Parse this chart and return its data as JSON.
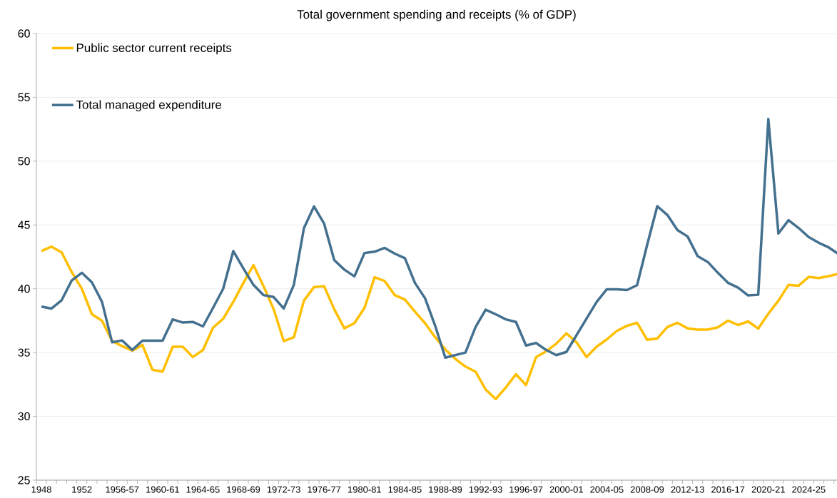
{
  "chart_data": {
    "type": "line",
    "title": "Total government spending and receipts (% of GDP)",
    "categories": [
      "1948",
      null,
      null,
      null,
      "1952",
      null,
      null,
      null,
      "1956-57",
      null,
      null,
      null,
      "1960-61",
      null,
      null,
      null,
      "1964-65",
      null,
      null,
      null,
      "1968-69",
      null,
      null,
      null,
      "1972-73",
      null,
      null,
      null,
      "1976-77",
      null,
      null,
      null,
      "1980-81",
      null,
      null,
      null,
      "1984-85",
      null,
      null,
      null,
      "1988-89",
      null,
      null,
      null,
      "1992-93",
      null,
      null,
      null,
      "1996-97",
      null,
      null,
      null,
      "2000-01",
      null,
      null,
      null,
      "2004-05",
      null,
      null,
      null,
      "2008-09",
      null,
      null,
      null,
      "2012-13",
      null,
      null,
      null,
      "2016-17",
      null,
      null,
      null,
      "2020-21",
      null,
      null,
      null,
      "2024-25",
      null,
      null,
      null
    ],
    "series": [
      {
        "name": "Public sector current receipts",
        "color": "#ffbf00",
        "values": [
          42.95,
          43.3,
          42.85,
          41.3,
          40.0,
          38.0,
          37.5,
          35.9,
          35.5,
          35.15,
          35.6,
          33.65,
          33.5,
          35.45,
          35.45,
          34.65,
          35.2,
          36.95,
          37.65,
          38.97,
          40.45,
          41.85,
          40.2,
          38.4,
          35.9,
          36.2,
          39.07,
          40.13,
          40.2,
          38.4,
          36.9,
          37.3,
          38.5,
          40.9,
          40.6,
          39.5,
          39.15,
          38.2,
          37.3,
          36.2,
          35.25,
          34.5,
          33.9,
          33.5,
          32.1,
          31.36,
          32.26,
          33.3,
          32.45,
          34.65,
          35.1,
          35.7,
          36.5,
          35.8,
          34.65,
          35.47,
          36.03,
          36.7,
          37.1,
          37.33,
          36.0,
          36.1,
          37.0,
          37.33,
          36.9,
          36.8,
          36.8,
          36.98,
          37.5,
          37.16,
          37.44,
          36.88,
          38.04,
          39.07,
          40.3,
          40.24,
          40.93,
          40.84,
          40.99,
          41.18
        ]
      },
      {
        "name": "Total managed expenditure",
        "color": "#44708f",
        "values": [
          38.6,
          38.45,
          39.1,
          40.65,
          41.25,
          40.5,
          38.97,
          35.8,
          35.95,
          35.2,
          35.93,
          35.93,
          35.93,
          37.6,
          37.35,
          37.4,
          37.05,
          38.5,
          40.0,
          42.95,
          41.6,
          40.3,
          39.5,
          39.35,
          38.45,
          40.3,
          44.75,
          46.45,
          45.1,
          42.25,
          41.5,
          40.97,
          42.8,
          42.9,
          43.2,
          42.75,
          42.4,
          40.45,
          39.25,
          37.1,
          34.6,
          34.8,
          35.0,
          37.0,
          38.36,
          38.0,
          37.6,
          37.4,
          35.55,
          35.75,
          35.2,
          34.8,
          35.05,
          36.36,
          37.67,
          38.97,
          39.96,
          39.96,
          39.9,
          40.28,
          43.45,
          46.47,
          45.78,
          44.6,
          44.1,
          42.55,
          42.1,
          41.25,
          40.47,
          40.09,
          39.48,
          39.53,
          53.3,
          44.33,
          45.37,
          44.76,
          44.05,
          43.6,
          43.23,
          42.7
        ]
      }
    ],
    "ylim": [
      25,
      60
    ],
    "yticks": [
      25,
      30,
      35,
      40,
      45,
      50,
      55,
      60
    ],
    "grid": "y",
    "legend": "top left",
    "marker": "none",
    "line_style": "solid"
  }
}
